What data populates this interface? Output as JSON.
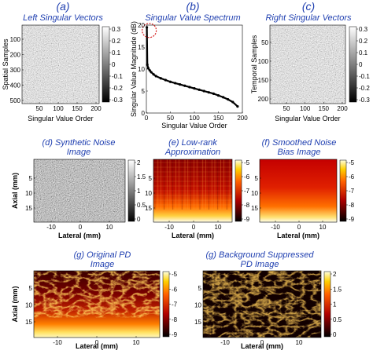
{
  "chart_data": [
    {
      "type": "heatmap",
      "letter": "(a)",
      "title": "Left Singular Vectors",
      "xlabel": "Singular Value Order",
      "ylabel": "Spatial Samples",
      "xticks": [
        "50",
        "100",
        "150",
        "200"
      ],
      "yticks": [
        "100",
        "200",
        "300",
        "400",
        "500"
      ],
      "colorbar_ticks": [
        "0.3",
        "0.2",
        "0.1",
        "0",
        "-0.1",
        "-0.2",
        "-0.3"
      ],
      "colormap": "gray"
    },
    {
      "type": "line",
      "letter": "(b)",
      "title": "Singular Value Spectrum",
      "xlabel": "Singular Value Order",
      "ylabel": "Singular Value Magnitude (dB)",
      "xlim": [
        0,
        200
      ],
      "ylim": [
        0,
        20
      ],
      "xticks": [
        "0",
        "50",
        "100",
        "150",
        "200"
      ],
      "yticks": [
        "0",
        "5",
        "10",
        "15",
        "20"
      ],
      "highlight_color": "#d62020",
      "x": [
        1,
        2,
        4,
        7,
        10,
        15,
        20,
        30,
        40,
        50,
        60,
        70,
        80,
        90,
        100,
        110,
        120,
        130,
        140,
        150,
        160,
        170,
        180,
        190
      ],
      "y": [
        19.5,
        11.0,
        10.2,
        9.7,
        9.3,
        8.8,
        8.4,
        7.9,
        7.5,
        7.1,
        6.8,
        6.5,
        6.2,
        5.9,
        5.6,
        5.3,
        5.0,
        4.7,
        4.4,
        4.0,
        3.6,
        3.1,
        2.5,
        1.5
      ]
    },
    {
      "type": "heatmap",
      "letter": "(c)",
      "title": "Right Singular Vectors",
      "xlabel": "Singular Value Order",
      "ylabel": "Temporal Samples",
      "xticks": [
        "50",
        "100",
        "150",
        "200"
      ],
      "yticks": [
        "50",
        "100",
        "150",
        "200"
      ],
      "colorbar_ticks": [
        "0.3",
        "0.2",
        "0.1",
        "0",
        "-0.1",
        "-0.2",
        "-0.3"
      ],
      "colormap": "gray"
    },
    {
      "type": "heatmap",
      "title_lines": [
        "(d) Synthetic Noise",
        "Image"
      ],
      "ylabel": "Axial (mm)",
      "yticks": [
        "5",
        "10",
        "15"
      ],
      "colorbar_ticks": [
        "2",
        "1.5",
        "1",
        "0.5",
        "0"
      ],
      "colormap": "gray"
    },
    {
      "type": "heatmap",
      "title_lines": [
        "(e) Low-rank",
        "Approximation"
      ],
      "xlabel": "Lateral (mm)",
      "xticks": [
        "-10",
        "0",
        "10"
      ],
      "yticks": [
        "5",
        "10",
        "15"
      ],
      "colorbar_ticks": [
        "-5",
        "-6",
        "-7",
        "-8",
        "-9"
      ],
      "colormap": "hot"
    },
    {
      "type": "heatmap",
      "title_lines": [
        "(f) Smoothed Noise",
        "Bias Image"
      ],
      "xlabel": "Lateral (mm)",
      "xticks": [
        "-10",
        "0",
        "10"
      ],
      "yticks": [
        "5",
        "10",
        "15"
      ],
      "colorbar_ticks": [
        "-5",
        "-6",
        "-7",
        "-8",
        "-9"
      ],
      "colormap": "hot"
    },
    {
      "type": "heatmap",
      "title_lines": [
        "(g) Original PD",
        "Image"
      ],
      "xlabel": "Lateral (mm)",
      "ylabel": "Axial (mm)",
      "xticks": [
        "-10",
        "0",
        "10"
      ],
      "yticks": [
        "5",
        "10",
        "15"
      ],
      "colorbar_ticks": [
        "-5",
        "-6",
        "-7",
        "-8",
        "-9"
      ],
      "colormap": "hot"
    },
    {
      "type": "heatmap",
      "title_lines": [
        "(g) Background Suppressed",
        "PD Image"
      ],
      "xlabel": "Lateral (mm)",
      "xticks": [
        "-10",
        "0",
        "10"
      ],
      "yticks": [
        "5",
        "10",
        "15"
      ],
      "colorbar_ticks": [
        "2",
        "1.5",
        "1",
        "0.5",
        "0"
      ],
      "colormap": "hot"
    }
  ],
  "extra_axis_labels": {
    "d_xlabel": "Lateral (mm)",
    "d_xticks": [
      "-10",
      "0",
      "10"
    ],
    "e_ylabel": "Axial (mm)"
  }
}
